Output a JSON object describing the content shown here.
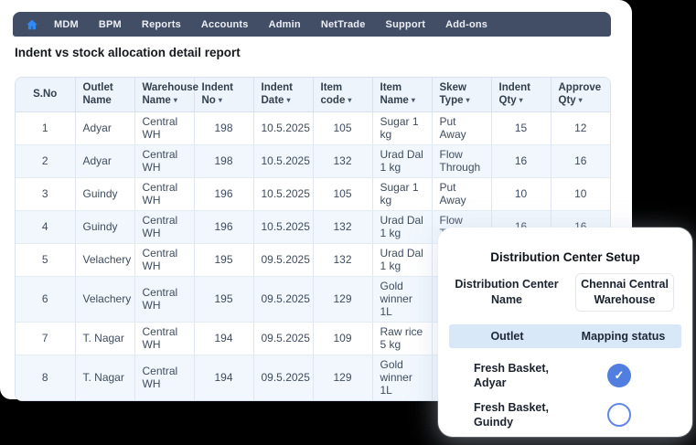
{
  "colors": {
    "navbar_bg": "#424e66",
    "accent_blue": "#2f88f6",
    "checked_blue": "#527ee0",
    "band_blue": "#d9e8f9",
    "row_alt_blue": "#f1f7fd"
  },
  "icons": {
    "home": "home-icon",
    "sort_arrow": "▾",
    "check": "✓"
  },
  "navbar": {
    "items": [
      "MDM",
      "BPM",
      "Reports",
      "Accounts",
      "Admin",
      "NetTrade",
      "Support",
      "Add-ons"
    ]
  },
  "page": {
    "title": "Indent vs stock allocation detail report"
  },
  "table": {
    "aligns": [
      "center",
      "left",
      "left",
      "center",
      "center",
      "center",
      "left",
      "left",
      "center",
      "center"
    ],
    "columns": [
      {
        "label": "S.No",
        "sortable": false
      },
      {
        "label": "Outlet Name",
        "sortable": false
      },
      {
        "label": "Warehouse Name",
        "sortable": true
      },
      {
        "label": "Indent No",
        "sortable": true
      },
      {
        "label": "Indent Date",
        "sortable": true
      },
      {
        "label": "Item code",
        "sortable": true
      },
      {
        "label": "Item Name",
        "sortable": true
      },
      {
        "label": "Skew Type",
        "sortable": true
      },
      {
        "label": "Indent Qty",
        "sortable": true
      },
      {
        "label": "Approve Qty",
        "sortable": true
      }
    ],
    "rows": [
      [
        "1",
        "Adyar",
        "Central WH",
        "198",
        "10.5.2025",
        "105",
        "Sugar 1 kg",
        "Put Away",
        "15",
        "12"
      ],
      [
        "2",
        "Adyar",
        "Central WH",
        "198",
        "10.5.2025",
        "132",
        "Urad Dal 1 kg",
        "Flow Through",
        "16",
        "16"
      ],
      [
        "3",
        "Guindy",
        "Central WH",
        "196",
        "10.5.2025",
        "105",
        "Sugar 1 kg",
        "Put Away",
        "10",
        "10"
      ],
      [
        "4",
        "Guindy",
        "Central WH",
        "196",
        "10.5.2025",
        "132",
        "Urad Dal 1 kg",
        "Flow Through",
        "16",
        "16"
      ],
      [
        "5",
        "Velachery",
        "Central WH",
        "195",
        "09.5.2025",
        "132",
        "Urad Dal 1 kg",
        "",
        "",
        ""
      ],
      [
        "6",
        "Velachery",
        "Central WH",
        "195",
        "09.5.2025",
        "129",
        "Gold winner 1L",
        "",
        "",
        ""
      ],
      [
        "7",
        "T. Nagar",
        "Central WH",
        "194",
        "09.5.2025",
        "109",
        "Raw rice 5 kg",
        "",
        "",
        ""
      ],
      [
        "8",
        "T. Nagar",
        "Central WH",
        "194",
        "09.5.2025",
        "129",
        "Gold winner 1L",
        "",
        "",
        ""
      ]
    ]
  },
  "modal": {
    "title": "Distribution Center Setup",
    "field_label": "Distribution Center Name",
    "field_value": "Chennai Central Warehouse",
    "columns": [
      "Outlet",
      "Mapping status"
    ],
    "outlets": [
      {
        "name": "Fresh Basket, Adyar",
        "mapped": true
      },
      {
        "name": "Fresh Basket, Guindy",
        "mapped": false
      }
    ]
  }
}
